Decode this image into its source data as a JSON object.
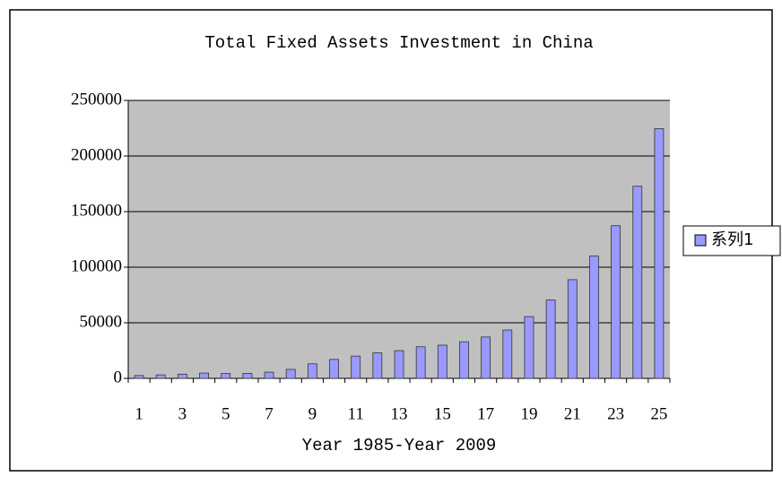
{
  "chart_data": {
    "type": "bar",
    "title": "Total Fixed Assets Investment in China",
    "x_label": "Year 1985-Year 2009",
    "categories": [
      "1",
      null,
      "3",
      null,
      "5",
      null,
      "7",
      null,
      "9",
      null,
      "11",
      null,
      "13",
      null,
      "15",
      null,
      "17",
      null,
      "19",
      null,
      "21",
      null,
      "23",
      null,
      "25"
    ],
    "series": [
      {
        "name": "系列1",
        "color": "#9999ff",
        "values": [
          2543,
          3121,
          3792,
          4754,
          4410,
          4517,
          5595,
          8080,
          13072,
          17042,
          20019,
          22914,
          24941,
          28406,
          29855,
          32918,
          37214,
          43500,
          55567,
          70477,
          88774,
          109998,
          137324,
          172828,
          224599
        ]
      }
    ],
    "ylim": [
      0,
      250000
    ],
    "yticks": [
      0,
      50000,
      100000,
      150000,
      200000,
      250000
    ],
    "grid": true,
    "legend": "right",
    "plot_background": "#c0c0c0"
  }
}
